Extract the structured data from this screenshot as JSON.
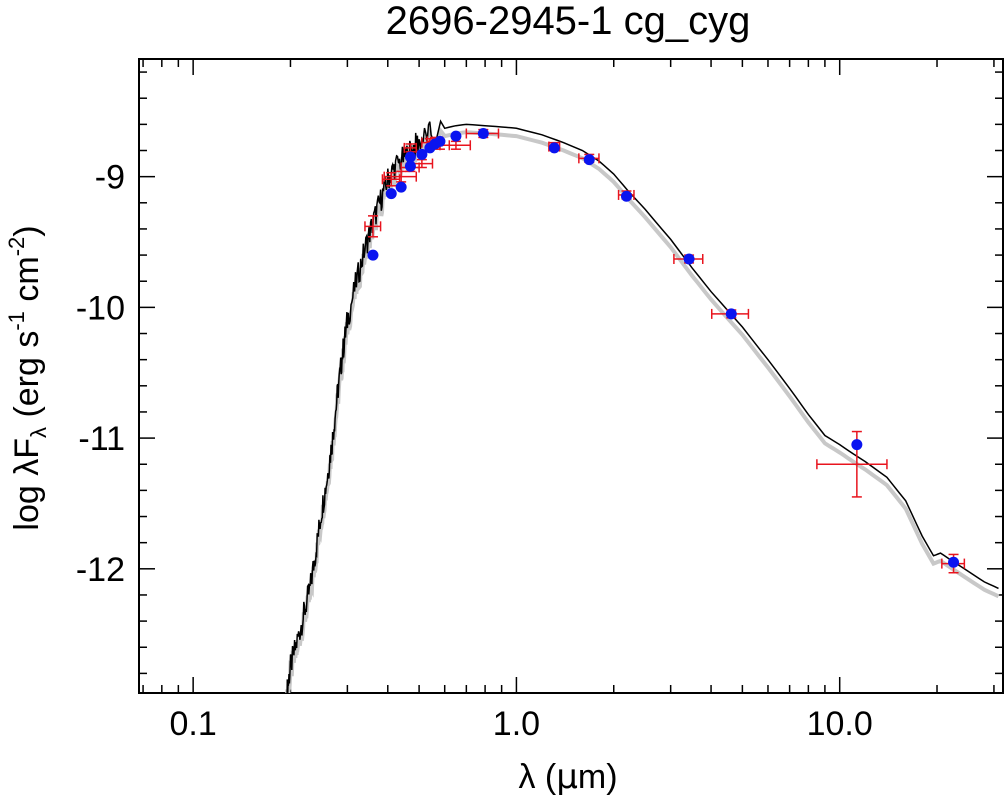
{
  "chart_data": {
    "type": "scatter",
    "title": "2696-2945-1   cg_cyg",
    "xlabel_parts": [
      "λ (",
      "μ",
      "m)"
    ],
    "ylabel_parts": {
      "pre": "log λF",
      "sub": "λ",
      "mid": " (erg s",
      "sup1": "-1",
      "mid2": " cm",
      "sup2": "-2",
      "post": ")"
    },
    "x_scale": "log",
    "xlim": [
      0.068,
      32
    ],
    "ylim": [
      -12.95,
      -8.1
    ],
    "x_ticks": [
      {
        "value": 0.1,
        "label": "0.1"
      },
      {
        "value": 1.0,
        "label": "1.0"
      },
      {
        "value": 10.0,
        "label": "10.0"
      }
    ],
    "y_ticks": [
      {
        "value": -9,
        "label": "-9"
      },
      {
        "value": -10,
        "label": "-10"
      },
      {
        "value": -11,
        "label": "-11"
      },
      {
        "value": -12,
        "label": "-12"
      }
    ],
    "colors": {
      "points": "#0a14f0",
      "errorbars": "#e8141e",
      "model": "#000000",
      "model_alt": "#c8c8c8"
    },
    "model_curve": [
      [
        0.195,
        -12.95
      ],
      [
        0.2,
        -12.75
      ],
      [
        0.21,
        -12.55
      ],
      [
        0.22,
        -12.35
      ],
      [
        0.23,
        -12.15
      ],
      [
        0.24,
        -11.85
      ],
      [
        0.25,
        -11.55
      ],
      [
        0.26,
        -11.3
      ],
      [
        0.27,
        -11.0
      ],
      [
        0.28,
        -10.65
      ],
      [
        0.29,
        -10.35
      ],
      [
        0.3,
        -10.1
      ],
      [
        0.32,
        -9.8
      ],
      [
        0.34,
        -9.55
      ],
      [
        0.36,
        -9.35
      ],
      [
        0.38,
        -9.18
      ],
      [
        0.4,
        -9.02
      ],
      [
        0.42,
        -8.93
      ],
      [
        0.45,
        -8.85
      ],
      [
        0.48,
        -8.78
      ],
      [
        0.5,
        -8.73
      ],
      [
        0.55,
        -8.66
      ],
      [
        0.6,
        -8.63
      ],
      [
        0.65,
        -8.61
      ],
      [
        0.7,
        -8.6
      ],
      [
        0.8,
        -8.61
      ],
      [
        0.9,
        -8.62
      ],
      [
        1.0,
        -8.63
      ],
      [
        1.2,
        -8.68
      ],
      [
        1.4,
        -8.74
      ],
      [
        1.6,
        -8.8
      ],
      [
        1.8,
        -8.88
      ],
      [
        2.0,
        -8.98
      ],
      [
        2.2,
        -9.1
      ],
      [
        2.5,
        -9.25
      ],
      [
        3.0,
        -9.48
      ],
      [
        3.5,
        -9.7
      ],
      [
        4.0,
        -9.88
      ],
      [
        5.0,
        -10.15
      ],
      [
        6.0,
        -10.4
      ],
      [
        7.0,
        -10.62
      ],
      [
        8.0,
        -10.82
      ],
      [
        9.0,
        -10.98
      ],
      [
        10.0,
        -11.05
      ],
      [
        11.0,
        -11.12
      ],
      [
        12.0,
        -11.18
      ],
      [
        14.0,
        -11.3
      ],
      [
        16.0,
        -11.48
      ],
      [
        18.0,
        -11.75
      ],
      [
        19.5,
        -11.9
      ],
      [
        20.5,
        -11.88
      ],
      [
        22.0,
        -11.93
      ],
      [
        25.0,
        -12.02
      ],
      [
        28.0,
        -12.1
      ],
      [
        31.0,
        -12.15
      ]
    ],
    "points": [
      {
        "x": 0.36,
        "y": -9.6,
        "xerr": 0.02,
        "yerr_lo": 0.08,
        "yerr_hi": 0.08,
        "ey": -9.38
      },
      {
        "x": 0.41,
        "y": -9.13,
        "xerr": 0.025,
        "yerr_lo": 0.05,
        "yerr_hi": 0.05,
        "ey": -9.02
      },
      {
        "x": 0.44,
        "y": -9.08,
        "xerr": 0.05,
        "yerr_lo": 0.04,
        "yerr_hi": 0.04,
        "ey": -9.0
      },
      {
        "x": 0.47,
        "y": -8.92,
        "xerr": 0.03,
        "yerr_lo": 0.03,
        "yerr_hi": 0.03,
        "ey": -8.93
      },
      {
        "x": 0.47,
        "y": -8.85,
        "xerr": 0.02,
        "yerr_lo": 0.03,
        "yerr_hi": 0.03,
        "ey": -8.78
      },
      {
        "x": 0.51,
        "y": -8.83,
        "xerr": 0.04,
        "yerr_lo": 0.03,
        "yerr_hi": 0.03,
        "ey": -8.9
      },
      {
        "x": 0.54,
        "y": -8.78,
        "xerr": 0.03,
        "yerr_lo": 0.03,
        "yerr_hi": 0.03,
        "ey": -8.74
      },
      {
        "x": 0.56,
        "y": -8.75,
        "xerr": 0.03,
        "yerr_lo": 0.03,
        "yerr_hi": 0.03,
        "ey": -8.73
      },
      {
        "x": 0.58,
        "y": -8.73,
        "xerr": 0.04,
        "yerr_lo": 0.03,
        "yerr_hi": 0.03,
        "ey": -8.76
      },
      {
        "x": 0.65,
        "y": -8.69,
        "xerr": 0.07,
        "yerr_lo": 0.03,
        "yerr_hi": 0.03,
        "ey": -8.76
      },
      {
        "x": 0.79,
        "y": -8.67,
        "xerr": 0.09,
        "yerr_lo": 0.03,
        "yerr_hi": 0.03,
        "ey": -8.67
      },
      {
        "x": 1.31,
        "y": -8.78,
        "xerr": 0.05,
        "yerr_lo": 0.03,
        "yerr_hi": 0.03,
        "ey": -8.77
      },
      {
        "x": 1.68,
        "y": -8.87,
        "xerr": 0.12,
        "yerr_lo": 0.03,
        "yerr_hi": 0.03,
        "ey": -8.86
      },
      {
        "x": 2.19,
        "y": -9.15,
        "xerr": 0.12,
        "yerr_lo": 0.03,
        "yerr_hi": 0.03,
        "ey": -9.14
      },
      {
        "x": 3.42,
        "y": -9.63,
        "xerr": 0.35,
        "yerr_lo": 0.03,
        "yerr_hi": 0.03,
        "ey": -9.63
      },
      {
        "x": 4.62,
        "y": -10.05,
        "xerr": 0.6,
        "yerr_lo": 0.03,
        "yerr_hi": 0.03,
        "ey": -10.05
      },
      {
        "x": 11.3,
        "y": -11.05,
        "xerr_lo": 2.8,
        "xerr_hi": 2.7,
        "yerr_lo": 0.25,
        "yerr_hi": 0.25,
        "ey": -11.2
      },
      {
        "x": 22.5,
        "y": -11.95,
        "xerr": 1.8,
        "yerr_lo": 0.07,
        "yerr_hi": 0.07,
        "ey": -11.96
      }
    ]
  }
}
